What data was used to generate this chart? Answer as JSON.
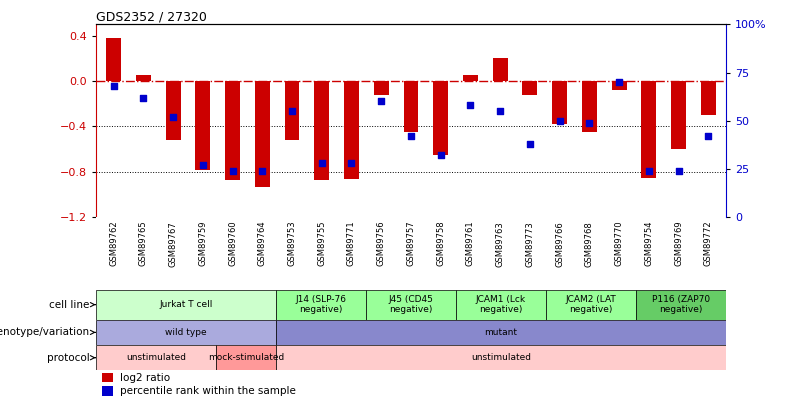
{
  "title": "GDS2352 / 27320",
  "samples": [
    "GSM89762",
    "GSM89765",
    "GSM89767",
    "GSM89759",
    "GSM89760",
    "GSM89764",
    "GSM89753",
    "GSM89755",
    "GSM89771",
    "GSM89756",
    "GSM89757",
    "GSM89758",
    "GSM89761",
    "GSM89763",
    "GSM89773",
    "GSM89766",
    "GSM89768",
    "GSM89770",
    "GSM89754",
    "GSM89769",
    "GSM89772"
  ],
  "log2_ratio": [
    0.38,
    0.05,
    -0.52,
    -0.78,
    -0.87,
    -0.93,
    -0.52,
    -0.87,
    -0.86,
    -0.12,
    -0.45,
    -0.65,
    0.05,
    0.2,
    -0.12,
    -0.38,
    -0.45,
    -0.08,
    -0.85,
    -0.6,
    -0.3
  ],
  "percentile": [
    68,
    62,
    52,
    27,
    24,
    24,
    55,
    28,
    28,
    60,
    42,
    32,
    58,
    55,
    38,
    50,
    49,
    70,
    24,
    24,
    42
  ],
  "ylim_left": [
    -1.2,
    0.5
  ],
  "bar_color": "#cc0000",
  "dot_color": "#0000cc",
  "cell_line_groups": [
    {
      "label": "Jurkat T cell",
      "start": 0,
      "end": 6,
      "color": "#ccffcc"
    },
    {
      "label": "J14 (SLP-76\nnegative)",
      "start": 6,
      "end": 9,
      "color": "#99ff99"
    },
    {
      "label": "J45 (CD45\nnegative)",
      "start": 9,
      "end": 12,
      "color": "#99ff99"
    },
    {
      "label": "JCAM1 (Lck\nnegative)",
      "start": 12,
      "end": 15,
      "color": "#99ff99"
    },
    {
      "label": "JCAM2 (LAT\nnegative)",
      "start": 15,
      "end": 18,
      "color": "#99ff99"
    },
    {
      "label": "P116 (ZAP70\nnegative)",
      "start": 18,
      "end": 21,
      "color": "#66cc66"
    }
  ],
  "genotype_groups": [
    {
      "label": "wild type",
      "start": 0,
      "end": 6,
      "color": "#aaaadd"
    },
    {
      "label": "mutant",
      "start": 6,
      "end": 21,
      "color": "#8888cc"
    }
  ],
  "protocol_groups": [
    {
      "label": "unstimulated",
      "start": 0,
      "end": 4,
      "color": "#ffcccc"
    },
    {
      "label": "mock-stimulated",
      "start": 4,
      "end": 6,
      "color": "#ff9999"
    },
    {
      "label": "unstimulated",
      "start": 6,
      "end": 21,
      "color": "#ffcccc"
    }
  ],
  "row_labels": [
    "cell line",
    "genotype/variation",
    "protocol"
  ],
  "legend_items": [
    {
      "label": "log2 ratio",
      "color": "#cc0000"
    },
    {
      "label": "percentile rank within the sample",
      "color": "#0000cc"
    }
  ]
}
